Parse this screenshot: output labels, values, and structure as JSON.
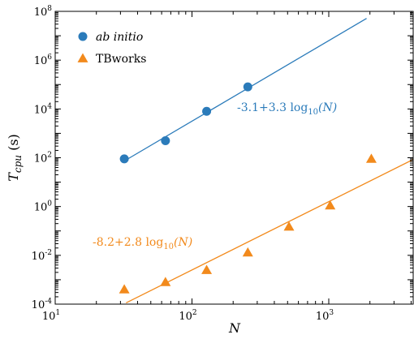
{
  "chart_data": {
    "type": "scatter",
    "x_scale": "log",
    "y_scale": "log",
    "xlim": [
      10,
      4200
    ],
    "ylim": [
      0.0001,
      100000000
    ],
    "xlabel": "N",
    "ylabel": {
      "main": "T",
      "sub": "cpu",
      "unit": " (s)"
    },
    "x_ticks": [
      {
        "value": 10,
        "base": "10",
        "exp": "1"
      },
      {
        "value": 100,
        "base": "10",
        "exp": "2"
      },
      {
        "value": 1000,
        "base": "10",
        "exp": "3"
      }
    ],
    "y_ticks": [
      {
        "value": 0.0001,
        "base": "10",
        "exp": "-4"
      },
      {
        "value": 0.01,
        "base": "10",
        "exp": "-2"
      },
      {
        "value": 1,
        "base": "10",
        "exp": "0"
      },
      {
        "value": 100,
        "base": "10",
        "exp": "2"
      },
      {
        "value": 10000,
        "base": "10",
        "exp": "4"
      },
      {
        "value": 1000000,
        "base": "10",
        "exp": "6"
      },
      {
        "value": 100000000,
        "base": "10",
        "exp": "8"
      }
    ],
    "legend_position": "top-left",
    "series": [
      {
        "name": "ab initio",
        "marker": "circle",
        "color": "#2b7bba",
        "x": [
          32,
          64,
          128,
          256
        ],
        "y": [
          90,
          500,
          8000,
          80000
        ],
        "fit": {
          "label": "-3.1+3.3 log",
          "label_sub": "10",
          "label_arg": "(N)",
          "intercept": -3.1,
          "slope": 3.3,
          "x_range": [
            32,
            1890
          ]
        }
      },
      {
        "name": "TBworks",
        "marker": "triangle",
        "color": "#f28a1c",
        "x": [
          32,
          64,
          128,
          256,
          512,
          1024,
          2048
        ],
        "y": [
          0.0004,
          0.0008,
          0.0025,
          0.013,
          0.15,
          1.1,
          90
        ],
        "fit": {
          "label": "-8.2+2.8 log",
          "label_sub": "10",
          "label_arg": "(N)",
          "intercept": -8.2,
          "slope": 2.8,
          "x_range": [
            33,
            4200
          ]
        }
      }
    ]
  }
}
